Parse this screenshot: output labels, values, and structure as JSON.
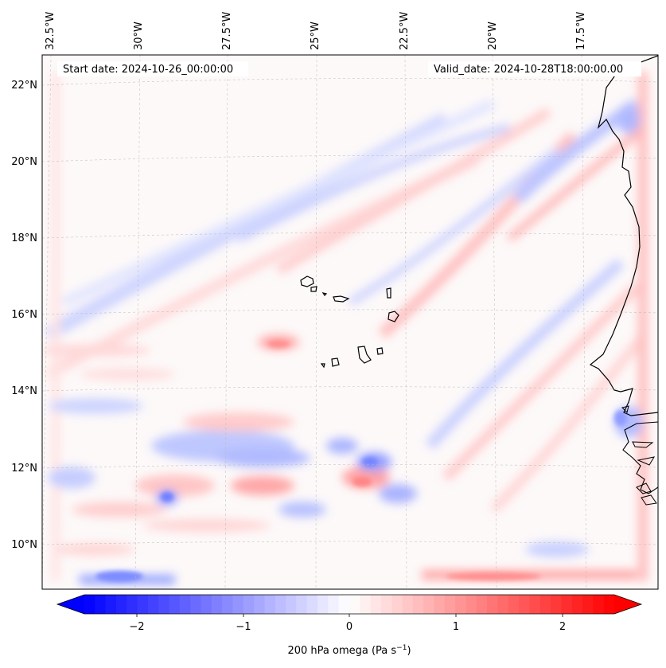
{
  "header": {
    "start_date": "Start date: 2024-10-26_00:00:00",
    "valid_date": "Valid_date: 2024-10-28T18:00:00.00"
  },
  "axes": {
    "lon_labels": [
      "32.5°W",
      "30°W",
      "27.5°W",
      "25°W",
      "22.5°W",
      "20°W",
      "17.5°W"
    ],
    "lat_labels": [
      "22°N",
      "20°N",
      "18°N",
      "16°N",
      "14°N",
      "12°N",
      "10°N"
    ]
  },
  "colorbar": {
    "ticks": [
      "−2",
      "−1",
      "0",
      "1",
      "2"
    ],
    "label": "200 hPa omega (Pa s",
    "label_sup": "−1",
    "label_end": ")",
    "min_color": "#0000ff",
    "max_color": "#ff0000"
  }
}
